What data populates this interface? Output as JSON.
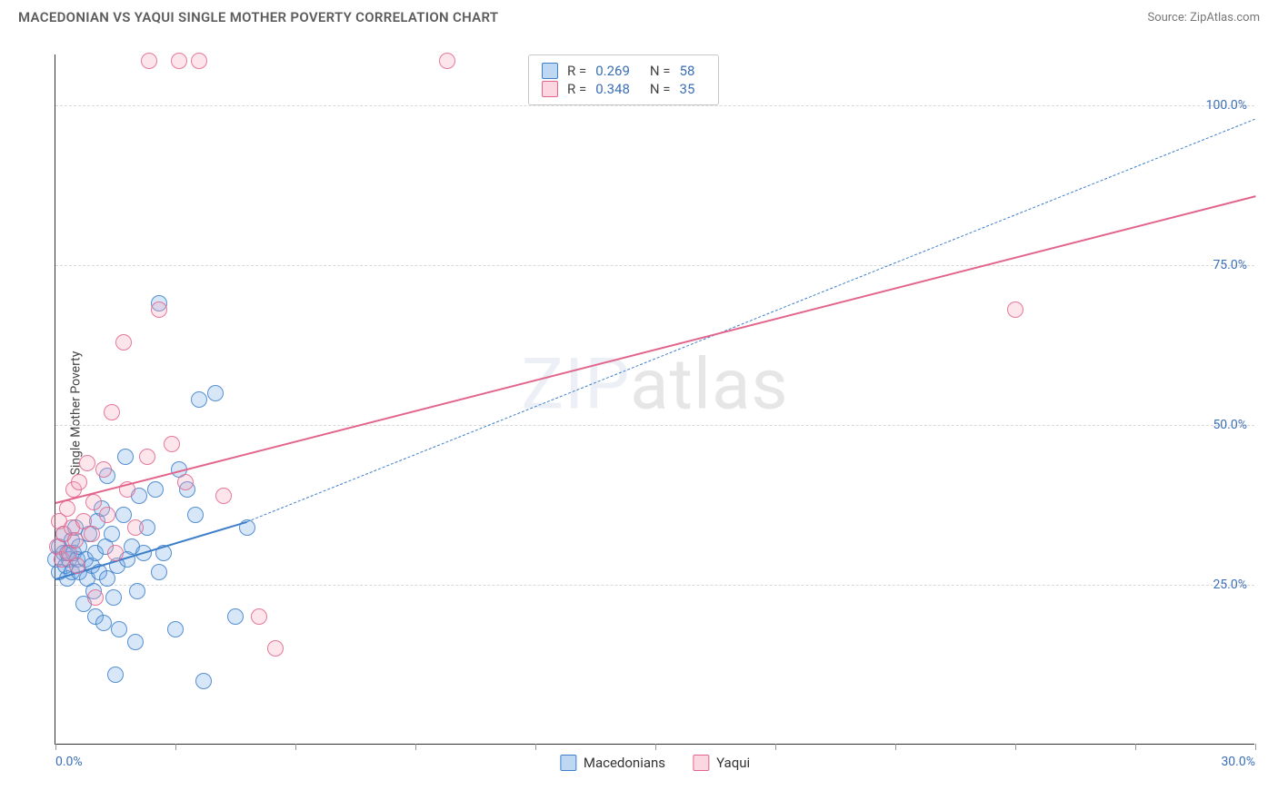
{
  "header": {
    "title": "MACEDONIAN VS YAQUI SINGLE MOTHER POVERTY CORRELATION CHART",
    "source": "Source: ZipAtlas.com"
  },
  "chart": {
    "type": "scatter",
    "ylabel": "Single Mother Poverty",
    "watermark_a": "ZIP",
    "watermark_b": "atlas",
    "background_color": "#ffffff",
    "grid_color": "#d9d9d9",
    "axis_color": "#333333",
    "label_color": "#3b6fb6",
    "xlim": [
      0,
      30
    ],
    "ylim": [
      0,
      108
    ],
    "marker_radius": 9,
    "marker_fill_opacity": 0.28,
    "marker_stroke_opacity": 0.85,
    "x_ticks": [
      0,
      3,
      6,
      9,
      12,
      15,
      18,
      21,
      24,
      27,
      30
    ],
    "x_tick_labels": {
      "0": "0.0%",
      "30": "30.0%"
    },
    "y_ticks": [
      25,
      50,
      75,
      100
    ],
    "y_tick_labels": {
      "25": "25.0%",
      "50": "50.0%",
      "75": "75.0%",
      "100": "100.0%"
    },
    "series": [
      {
        "name": "Macedonians",
        "color": "#6ea8e6",
        "stroke": "#3e7fca",
        "R": "0.269",
        "N": "58",
        "trend_solid": {
          "x1": 0,
          "y1": 26,
          "x2": 4.8,
          "y2": 35,
          "width": 2.2
        },
        "trend_dashed": {
          "x1": 4.8,
          "y1": 35,
          "x2": 30,
          "y2": 98,
          "width": 1.2
        },
        "points": [
          [
            0.0,
            29
          ],
          [
            0.1,
            27
          ],
          [
            0.1,
            31
          ],
          [
            0.2,
            30
          ],
          [
            0.2,
            33
          ],
          [
            0.3,
            26
          ],
          [
            0.25,
            28
          ],
          [
            0.3,
            30
          ],
          [
            0.35,
            29
          ],
          [
            0.4,
            32
          ],
          [
            0.4,
            27
          ],
          [
            0.45,
            30
          ],
          [
            0.5,
            34
          ],
          [
            0.55,
            29
          ],
          [
            0.6,
            27
          ],
          [
            0.6,
            31
          ],
          [
            0.7,
            22
          ],
          [
            0.75,
            29
          ],
          [
            0.8,
            26
          ],
          [
            0.85,
            33
          ],
          [
            0.9,
            28
          ],
          [
            0.95,
            24
          ],
          [
            1.0,
            20
          ],
          [
            1.0,
            30
          ],
          [
            1.05,
            35
          ],
          [
            1.1,
            27
          ],
          [
            1.15,
            37
          ],
          [
            1.2,
            19
          ],
          [
            1.25,
            31
          ],
          [
            1.3,
            42
          ],
          [
            1.3,
            26
          ],
          [
            1.4,
            33
          ],
          [
            1.45,
            23
          ],
          [
            1.5,
            11
          ],
          [
            1.55,
            28
          ],
          [
            1.6,
            18
          ],
          [
            1.7,
            36
          ],
          [
            1.75,
            45
          ],
          [
            1.8,
            29
          ],
          [
            1.9,
            31
          ],
          [
            2.0,
            16
          ],
          [
            2.05,
            24
          ],
          [
            2.1,
            39
          ],
          [
            2.2,
            30
          ],
          [
            2.3,
            34
          ],
          [
            2.5,
            40
          ],
          [
            2.6,
            69
          ],
          [
            2.6,
            27
          ],
          [
            2.7,
            30
          ],
          [
            3.0,
            18
          ],
          [
            3.1,
            43
          ],
          [
            3.3,
            40
          ],
          [
            3.5,
            36
          ],
          [
            3.6,
            54
          ],
          [
            3.7,
            10
          ],
          [
            4.0,
            55
          ],
          [
            4.5,
            20
          ],
          [
            4.8,
            34
          ]
        ]
      },
      {
        "name": "Yaqui",
        "color": "#f3a7bc",
        "stroke": "#e2648b",
        "R": "0.348",
        "N": "35",
        "trend_solid": {
          "x1": 0,
          "y1": 38,
          "x2": 30,
          "y2": 86,
          "width": 2.2
        },
        "trend_dashed": null,
        "points": [
          [
            0.05,
            31
          ],
          [
            0.1,
            35
          ],
          [
            0.15,
            29
          ],
          [
            0.2,
            33
          ],
          [
            0.3,
            37
          ],
          [
            0.35,
            30
          ],
          [
            0.4,
            34
          ],
          [
            0.45,
            40
          ],
          [
            0.5,
            32
          ],
          [
            0.55,
            28
          ],
          [
            0.6,
            41
          ],
          [
            0.7,
            35
          ],
          [
            0.8,
            44
          ],
          [
            0.9,
            33
          ],
          [
            0.95,
            38
          ],
          [
            1.0,
            23
          ],
          [
            1.2,
            43
          ],
          [
            1.3,
            36
          ],
          [
            1.4,
            52
          ],
          [
            1.5,
            30
          ],
          [
            1.7,
            63
          ],
          [
            1.8,
            40
          ],
          [
            2.0,
            34
          ],
          [
            2.3,
            45
          ],
          [
            2.35,
            107
          ],
          [
            2.6,
            68
          ],
          [
            2.9,
            47
          ],
          [
            3.1,
            107
          ],
          [
            3.25,
            41
          ],
          [
            3.6,
            107
          ],
          [
            4.2,
            39
          ],
          [
            5.1,
            20
          ],
          [
            5.5,
            15
          ],
          [
            9.8,
            107
          ],
          [
            24.0,
            68
          ]
        ]
      }
    ],
    "stats_box": {
      "labels": {
        "R": "R =",
        "N": "N ="
      }
    },
    "legend": {
      "items": [
        "Macedonians",
        "Yaqui"
      ]
    }
  }
}
